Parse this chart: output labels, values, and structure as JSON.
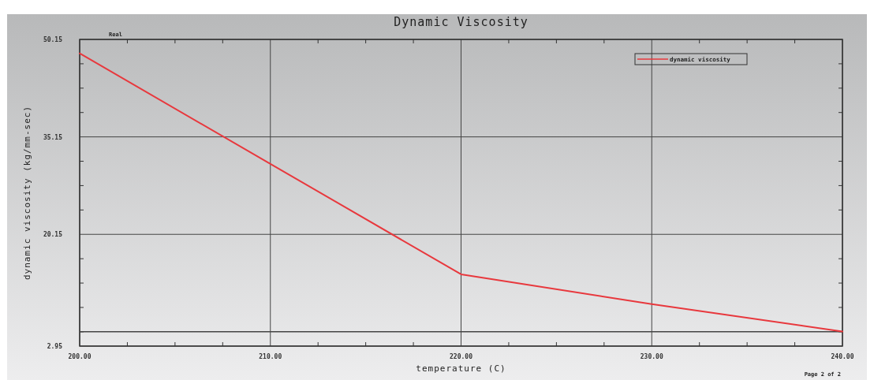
{
  "chart_data": {
    "type": "line",
    "title": "Dynamic Viscosity",
    "xlabel": "temperature (C)",
    "ylabel": "dynamic viscosity (kg/mm-sec)",
    "annotations": [
      "Real",
      "Page 2 of 2"
    ],
    "x": [
      200,
      210,
      220,
      230,
      240
    ],
    "series": [
      {
        "name": "dynamic viscosity",
        "color": "#e8383d",
        "values": [
          48,
          31,
          14,
          9.4,
          5.2
        ]
      }
    ],
    "xlim": [
      200,
      240
    ],
    "xticks": [
      {
        "value": 200,
        "label": "200.00"
      },
      {
        "value": 202.5,
        "label": null
      },
      {
        "value": 205,
        "label": null
      },
      {
        "value": 207.5,
        "label": null
      },
      {
        "value": 210,
        "label": "210.00"
      },
      {
        "value": 212.5,
        "label": null
      },
      {
        "value": 215,
        "label": null
      },
      {
        "value": 217.5,
        "label": null
      },
      {
        "value": 220,
        "label": "220.00"
      },
      {
        "value": 222.5,
        "label": null
      },
      {
        "value": 225,
        "label": null
      },
      {
        "value": 227.5,
        "label": null
      },
      {
        "value": 230,
        "label": "230.00"
      },
      {
        "value": 232.5,
        "label": null
      },
      {
        "value": 235,
        "label": null
      },
      {
        "value": 237.5,
        "label": null
      },
      {
        "value": 240,
        "label": "240.00"
      }
    ],
    "ylim": [
      2.95,
      50.15
    ],
    "yticks": [
      2.95,
      {
        "value": 5.15,
        "label": null
      },
      {
        "value": 8.9,
        "label": null
      },
      {
        "value": 12.65,
        "label": null
      },
      {
        "value": 16.4,
        "label": null
      },
      20.15,
      {
        "value": 23.9,
        "label": null
      },
      {
        "value": 27.65,
        "label": null
      },
      {
        "value": 31.4,
        "label": null
      },
      35.15,
      {
        "value": 38.9,
        "label": null
      },
      {
        "value": 42.65,
        "label": null
      },
      {
        "value": 46.4,
        "label": null
      },
      50.15
    ],
    "ref_lines": [
      {
        "axis": "y",
        "value": 5.15,
        "label": null,
        "color": "#444444"
      }
    ],
    "grid": true,
    "legend": "top right",
    "marker": "none",
    "line_style": "solid"
  }
}
